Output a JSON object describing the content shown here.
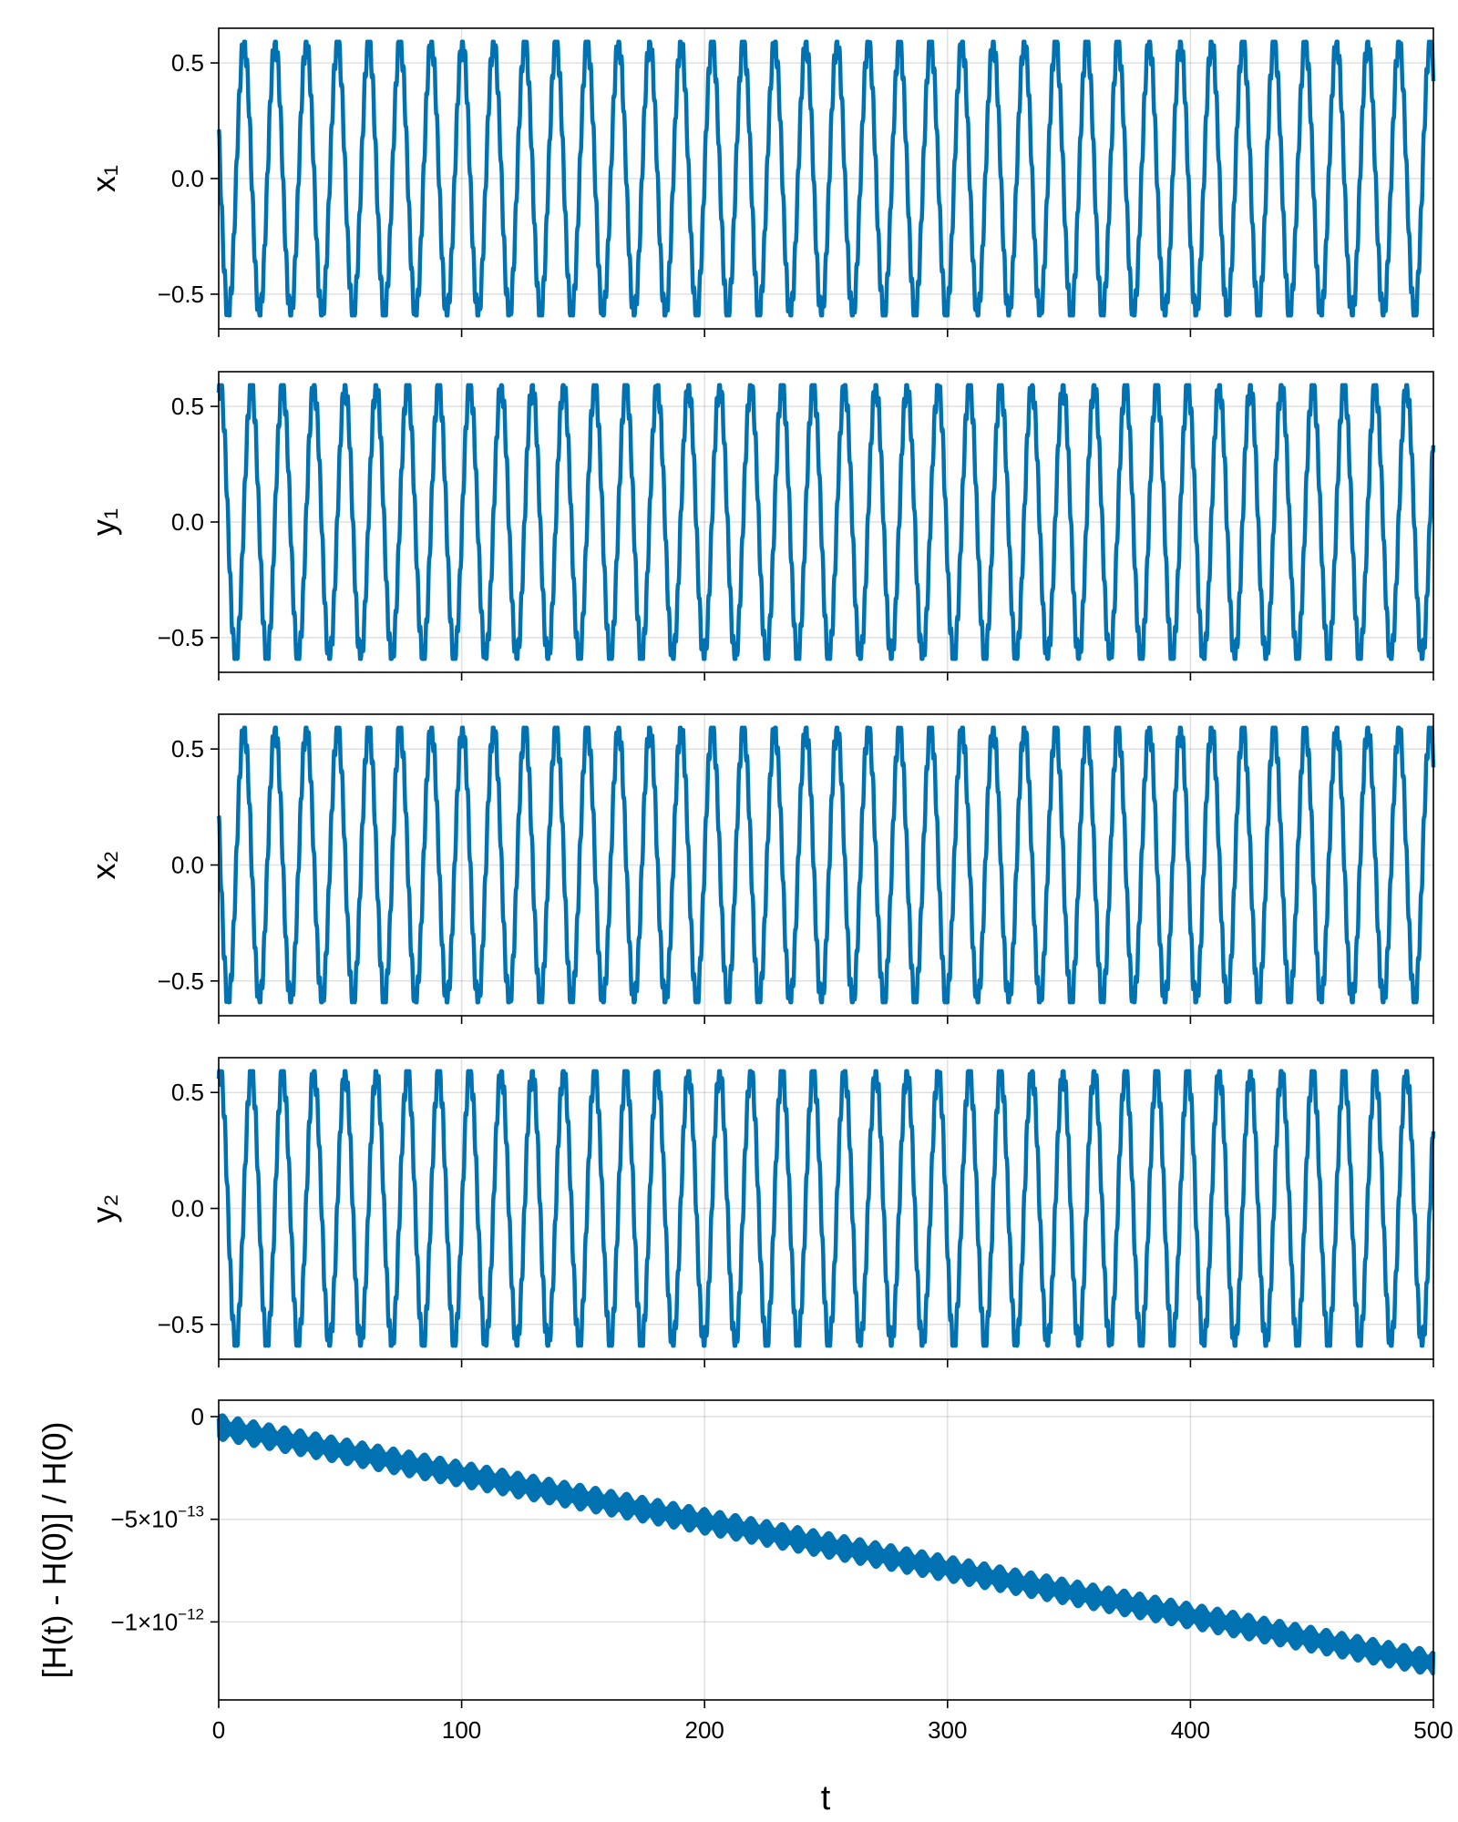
{
  "chart_data": [
    {
      "type": "line",
      "ylabel": "x₁",
      "xlim": [
        0,
        500
      ],
      "ylim": [
        -0.65,
        0.65
      ],
      "y_ticks": [
        {
          "value": -0.5,
          "label": "−0.5"
        },
        {
          "value": 0.0,
          "label": "0.0"
        },
        {
          "value": 0.5,
          "label": "0.5"
        }
      ],
      "x_ticks": [
        0,
        100,
        200,
        300,
        400,
        500
      ],
      "show_x_tick_labels": false,
      "grid": true,
      "series_color": "#0072b2",
      "signal": {
        "amplitude": 0.585,
        "period": 12.85,
        "phase": 1.2,
        "ripple_amplitude": 0.05,
        "ripple_period": 1.15
      },
      "x_range": [
        0,
        500
      ]
    },
    {
      "type": "line",
      "ylabel": "y₁",
      "xlim": [
        0,
        500
      ],
      "ylim": [
        -0.65,
        0.65
      ],
      "y_ticks": [
        {
          "value": -0.5,
          "label": "−0.5"
        },
        {
          "value": 0.0,
          "label": "0.0"
        },
        {
          "value": 0.5,
          "label": "0.5"
        }
      ],
      "x_ticks": [
        0,
        100,
        200,
        300,
        400,
        500
      ],
      "show_x_tick_labels": false,
      "grid": true,
      "series_color": "#0072b2",
      "signal": {
        "amplitude": 0.585,
        "period": 12.85,
        "phase": -0.3,
        "ripple_amplitude": 0.05,
        "ripple_period": 1.15
      },
      "x_range": [
        0,
        500
      ]
    },
    {
      "type": "line",
      "ylabel": "x₂",
      "xlim": [
        0,
        500
      ],
      "ylim": [
        -0.65,
        0.65
      ],
      "y_ticks": [
        {
          "value": -0.5,
          "label": "−0.5"
        },
        {
          "value": 0.0,
          "label": "0.0"
        },
        {
          "value": 0.5,
          "label": "0.5"
        }
      ],
      "x_ticks": [
        0,
        100,
        200,
        300,
        400,
        500
      ],
      "show_x_tick_labels": false,
      "grid": true,
      "series_color": "#0072b2",
      "signal": {
        "amplitude": 0.585,
        "period": 12.85,
        "phase": 1.2,
        "ripple_amplitude": 0.05,
        "ripple_period": 1.15
      },
      "x_range": [
        0,
        500
      ]
    },
    {
      "type": "line",
      "ylabel": "y₂",
      "xlim": [
        0,
        500
      ],
      "ylim": [
        -0.65,
        0.65
      ],
      "y_ticks": [
        {
          "value": -0.5,
          "label": "−0.5"
        },
        {
          "value": 0.0,
          "label": "0.0"
        },
        {
          "value": 0.5,
          "label": "0.5"
        }
      ],
      "x_ticks": [
        0,
        100,
        200,
        300,
        400,
        500
      ],
      "show_x_tick_labels": false,
      "grid": true,
      "series_color": "#0072b2",
      "signal": {
        "amplitude": 0.585,
        "period": 12.85,
        "phase": -0.3,
        "ripple_amplitude": 0.05,
        "ripple_period": 1.15
      },
      "x_range": [
        0,
        500
      ]
    },
    {
      "type": "line",
      "ylabel": "[H(t) - H(0)] / H(0)",
      "xlabel": "t",
      "xlim": [
        0,
        500
      ],
      "ylim": [
        -1.38e-12,
        8e-14
      ],
      "y_ticks": [
        {
          "value": 0,
          "mantissa": "0",
          "exponent": ""
        },
        {
          "value": -5e-13,
          "mantissa": "−5×10",
          "exponent": "−13"
        },
        {
          "value": -1e-12,
          "mantissa": "−1×10",
          "exponent": "−12"
        }
      ],
      "x_ticks": [
        0,
        100,
        200,
        300,
        400,
        500
      ],
      "x_tick_labels": [
        "0",
        "100",
        "200",
        "300",
        "400",
        "500"
      ],
      "show_x_tick_labels": true,
      "grid": true,
      "series_color": "#0072b2",
      "drift": {
        "start": -5e-14,
        "end": -1.2e-12,
        "band_width": 1.2e-13,
        "oscillation_period": 6.4
      },
      "x_range": [
        0,
        500
      ]
    }
  ]
}
